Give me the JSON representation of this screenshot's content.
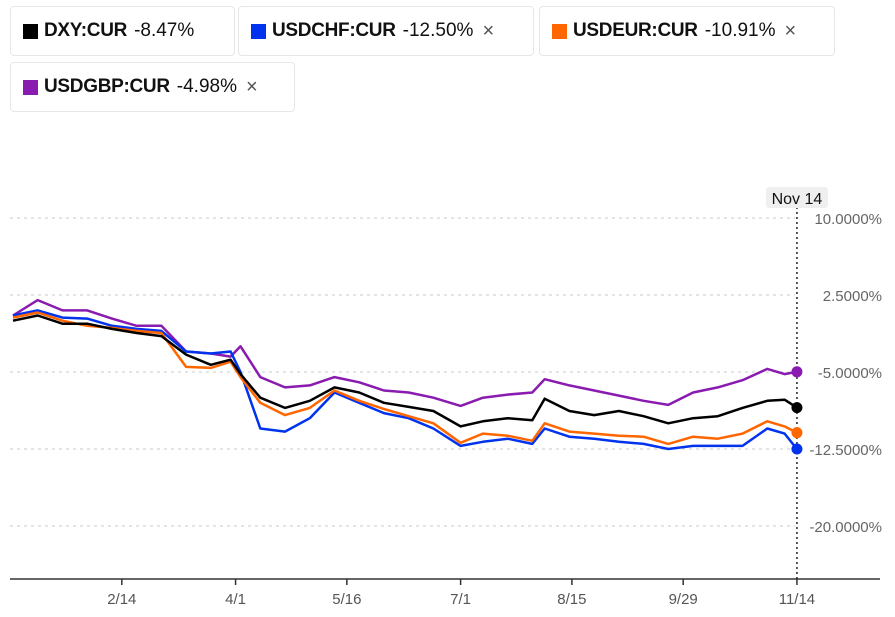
{
  "legend": [
    {
      "name": "DXY:CUR",
      "change": "-8.47%",
      "color": "#000000",
      "removable": false
    },
    {
      "name": "USDCHF:CUR",
      "change": "-12.50%",
      "color": "#0033ee",
      "removable": true
    },
    {
      "name": "USDEUR:CUR",
      "change": "-10.91%",
      "color": "#ff6600",
      "removable": true
    },
    {
      "name": "USDGBP:CUR",
      "change": "-4.98%",
      "color": "#8a1bb0",
      "removable": true
    }
  ],
  "close_icon": "×",
  "chart_data": {
    "type": "line",
    "title": "",
    "xlabel": "",
    "ylabel": "",
    "ylim": [
      -25.5,
      11
    ],
    "yticks": [
      10,
      2.5,
      -5,
      -12.5,
      -20
    ],
    "ytick_labels": [
      "10.0000%",
      "2.5000%",
      "-5.0000%",
      "-12.5000%",
      "-20.0000%"
    ],
    "xticks": [
      44,
      90,
      135,
      181,
      226,
      271,
      317
    ],
    "xtick_labels": [
      "2/14",
      "4/1",
      "5/16",
      "7/1",
      "8/15",
      "9/29",
      "11/14"
    ],
    "crosshair_label": "Nov 14",
    "crosshair_x": 317,
    "x": [
      0,
      10,
      20,
      30,
      40,
      50,
      60,
      70,
      80,
      88,
      92,
      100,
      110,
      120,
      130,
      140,
      150,
      160,
      170,
      181,
      190,
      200,
      210,
      215,
      225,
      235,
      245,
      255,
      265,
      275,
      285,
      295,
      305,
      312,
      317
    ],
    "series": [
      {
        "name": "USDGBP:CUR",
        "color": "#8a1bb0",
        "values": [
          0.5,
          2.0,
          1.0,
          1.0,
          0.2,
          -0.5,
          -0.5,
          -3.0,
          -3.2,
          -3.5,
          -2.5,
          -5.5,
          -6.5,
          -6.3,
          -5.5,
          -6.0,
          -6.8,
          -7.0,
          -7.5,
          -8.3,
          -7.5,
          -7.2,
          -7.0,
          -5.7,
          -6.3,
          -6.8,
          -7.3,
          -7.8,
          -8.2,
          -7.0,
          -6.5,
          -5.8,
          -4.7,
          -5.2,
          -4.98
        ]
      },
      {
        "name": "USDCHF:CUR",
        "color": "#0033ee",
        "values": [
          0.5,
          1.0,
          0.3,
          0.2,
          -0.5,
          -0.8,
          -1.0,
          -3.0,
          -3.2,
          -3.0,
          -5.0,
          -10.5,
          -10.8,
          -9.5,
          -7.0,
          -8.0,
          -9.0,
          -9.5,
          -10.5,
          -12.2,
          -11.8,
          -11.5,
          -12.0,
          -10.5,
          -11.3,
          -11.5,
          -11.8,
          -12.0,
          -12.5,
          -12.2,
          -12.2,
          -12.2,
          -10.5,
          -11.0,
          -12.5
        ]
      },
      {
        "name": "USDEUR:CUR",
        "color": "#ff6600",
        "values": [
          0.3,
          0.8,
          0,
          -0.5,
          -0.7,
          -1.0,
          -1.2,
          -4.5,
          -4.6,
          -4.0,
          -5.5,
          -8.0,
          -9.2,
          -8.5,
          -6.8,
          -7.8,
          -8.6,
          -9.3,
          -10.0,
          -11.9,
          -11.0,
          -11.2,
          -11.7,
          -10.0,
          -10.8,
          -11.0,
          -11.2,
          -11.3,
          -12.0,
          -11.3,
          -11.5,
          -11.0,
          -9.8,
          -10.3,
          -10.91
        ]
      },
      {
        "name": "DXY:CUR",
        "color": "#000000",
        "values": [
          0,
          0.5,
          -0.3,
          -0.3,
          -0.8,
          -1.2,
          -1.5,
          -3.3,
          -4.3,
          -3.8,
          -5.2,
          -7.5,
          -8.5,
          -7.8,
          -6.5,
          -7.0,
          -8.0,
          -8.4,
          -8.8,
          -10.3,
          -9.8,
          -9.5,
          -9.7,
          -7.6,
          -8.8,
          -9.2,
          -8.8,
          -9.3,
          -10.0,
          -9.5,
          -9.3,
          -8.5,
          -7.8,
          -7.7,
          -8.47
        ]
      }
    ]
  }
}
